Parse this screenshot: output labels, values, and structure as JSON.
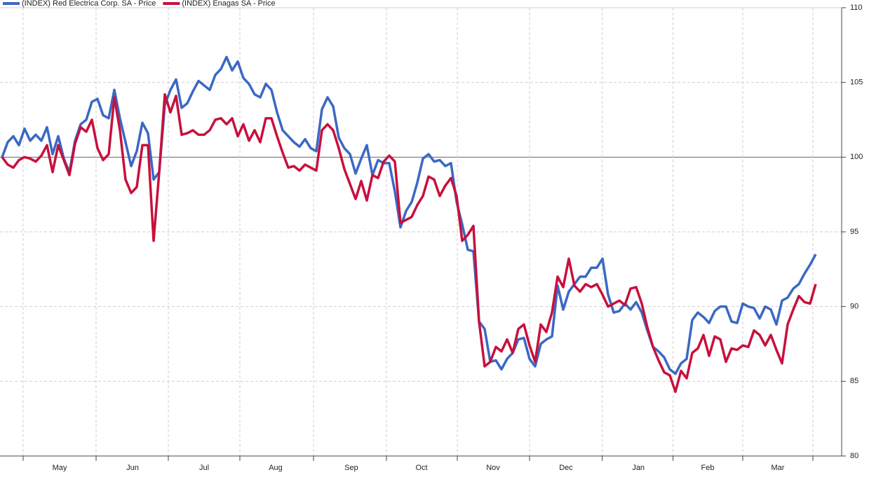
{
  "chart_data": {
    "type": "line",
    "xlim": [
      -0.375,
      149.625
    ],
    "xticks": [
      {
        "value": 10.25,
        "label": "May"
      },
      {
        "value": 23.25,
        "label": "Jun"
      },
      {
        "value": 36,
        "label": "Jul"
      },
      {
        "value": 48.75,
        "label": "Aug"
      },
      {
        "value": 62.25,
        "label": "Sep"
      },
      {
        "value": 74.75,
        "label": "Oct"
      },
      {
        "value": 87.5,
        "label": "Nov"
      },
      {
        "value": 100.5,
        "label": "Dec"
      },
      {
        "value": 113.4,
        "label": "Jan"
      },
      {
        "value": 125.75,
        "label": "Feb"
      },
      {
        "value": 138.25,
        "label": "Mar"
      }
    ],
    "ylim": [
      80,
      110
    ],
    "yticks": [
      80,
      85,
      90,
      95,
      100,
      105,
      110
    ],
    "baseline": 100,
    "grid": true,
    "legend": "top-left",
    "series": [
      {
        "name": "(INDEX) Red Electrica Corp. SA - Price",
        "color": "#3a68c4",
        "values": [
          100.0,
          101.0,
          101.4,
          100.8,
          101.9,
          101.1,
          101.5,
          101.1,
          102.0,
          100.2,
          101.4,
          99.9,
          99.0,
          101.1,
          102.2,
          102.5,
          103.7,
          103.9,
          102.8,
          102.6,
          104.5,
          102.6,
          101.0,
          99.4,
          100.4,
          102.3,
          101.6,
          98.5,
          99.0,
          103.5,
          104.5,
          105.2,
          103.3,
          103.6,
          104.4,
          105.1,
          104.8,
          104.5,
          105.5,
          105.9,
          106.7,
          105.8,
          106.4,
          105.3,
          104.9,
          104.2,
          104.0,
          104.9,
          104.5,
          103.0,
          101.8,
          101.4,
          101.0,
          100.7,
          101.2,
          100.6,
          100.4,
          103.2,
          104.0,
          103.4,
          101.3,
          100.6,
          100.2,
          98.9,
          99.9,
          100.8,
          98.8,
          99.8,
          99.6,
          99.6,
          97.7,
          95.3,
          96.4,
          97.0,
          98.3,
          99.9,
          100.2,
          99.7,
          99.8,
          99.4,
          99.6,
          97.0,
          95.5,
          93.8,
          93.7,
          89.0,
          88.5,
          86.3,
          86.4,
          85.8,
          86.5,
          86.9,
          87.8,
          87.9,
          86.5,
          86.0,
          87.5,
          87.8,
          88.0,
          91.4,
          89.8,
          91.0,
          91.5,
          92.0,
          92.0,
          92.6,
          92.6,
          93.2,
          90.8,
          89.6,
          89.7,
          90.2,
          89.8,
          90.3,
          89.6,
          88.4,
          87.3,
          87.0,
          86.6,
          85.8,
          85.5,
          86.2,
          86.5,
          89.1,
          89.6,
          89.3,
          88.9,
          89.7,
          90.0,
          90.0,
          89.0,
          88.9,
          90.2,
          90.0,
          89.9,
          89.2,
          90.0,
          89.8,
          88.8,
          90.4,
          90.6,
          91.2,
          91.5,
          92.2,
          92.8,
          93.5
        ]
      },
      {
        "name": "(INDEX) Enagas SA - Price",
        "color": "#c8103c",
        "values": [
          100.0,
          99.5,
          99.3,
          99.8,
          100.0,
          99.9,
          99.7,
          100.1,
          100.8,
          99.0,
          100.8,
          99.8,
          98.8,
          100.9,
          102.0,
          101.7,
          102.5,
          100.6,
          99.8,
          100.2,
          104.0,
          101.8,
          98.5,
          97.6,
          98.0,
          100.8,
          100.8,
          94.4,
          99.0,
          104.2,
          103.0,
          104.1,
          101.5,
          101.6,
          101.8,
          101.5,
          101.5,
          101.8,
          102.5,
          102.6,
          102.2,
          102.6,
          101.4,
          102.2,
          101.1,
          101.8,
          101.0,
          102.6,
          102.6,
          101.4,
          100.3,
          99.3,
          99.4,
          99.1,
          99.5,
          99.3,
          99.1,
          101.8,
          102.2,
          101.8,
          100.6,
          99.2,
          98.2,
          97.2,
          98.4,
          97.1,
          98.8,
          98.6,
          99.7,
          100.1,
          99.7,
          95.6,
          95.8,
          96.0,
          96.8,
          97.4,
          98.7,
          98.5,
          97.4,
          98.1,
          98.6,
          97.4,
          94.4,
          94.8,
          95.4,
          89.0,
          86.0,
          86.3,
          87.3,
          87.0,
          87.8,
          86.9,
          88.5,
          88.8,
          87.4,
          86.3,
          88.8,
          88.3,
          89.6,
          92.0,
          91.3,
          93.2,
          91.4,
          91.0,
          91.5,
          91.3,
          91.5,
          90.8,
          90.0,
          90.2,
          90.4,
          90.1,
          91.2,
          91.3,
          90.2,
          88.6,
          87.3,
          86.4,
          85.6,
          85.4,
          84.3,
          85.7,
          85.2,
          86.9,
          87.2,
          88.1,
          86.7,
          88.0,
          87.8,
          86.3,
          87.2,
          87.1,
          87.4,
          87.3,
          88.4,
          88.1,
          87.4,
          88.1,
          87.1,
          86.2,
          88.8,
          89.8,
          90.7,
          90.3,
          90.2,
          91.5
        ]
      }
    ]
  }
}
